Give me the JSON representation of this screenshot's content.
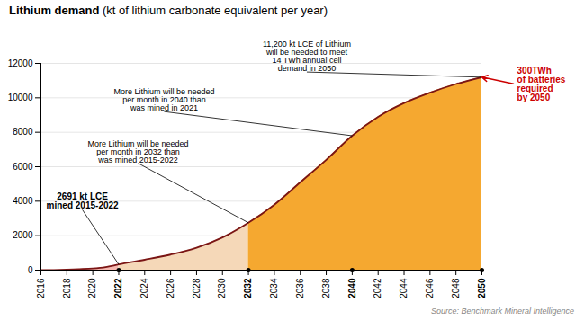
{
  "chart_data": {
    "type": "area",
    "title": "Lithium demand",
    "subtitle": "(kt of lithium carbonate equivalent per year)",
    "caption": "Source: Benchmark Mineral Intelligence",
    "x": [
      2016,
      2017,
      2018,
      2019,
      2020,
      2021,
      2022,
      2024,
      2026,
      2028,
      2030,
      2032,
      2034,
      2036,
      2038,
      2040,
      2042,
      2044,
      2046,
      2048,
      2050
    ],
    "values": [
      0,
      10,
      30,
      60,
      100,
      180,
      330,
      600,
      900,
      1300,
      1900,
      2750,
      3800,
      5100,
      6400,
      7800,
      8900,
      9700,
      10300,
      10800,
      11200
    ],
    "color": "#7a1515",
    "colors": [
      "#f5b8b0",
      "#f5d8b8",
      "#f5a830"
    ],
    "zone_breaks": [
      2022,
      2032
    ],
    "marked_x": [
      2022,
      2032,
      2040,
      2050
    ],
    "xlim": [
      2016,
      2050
    ],
    "xticks": [
      2016,
      2018,
      2020,
      2022,
      2024,
      2026,
      2028,
      2030,
      2032,
      2034,
      2036,
      2038,
      2040,
      2042,
      2044,
      2046,
      2048,
      2050
    ],
    "ylim": [
      0,
      12000
    ],
    "yticks": [
      0,
      2000,
      4000,
      6000,
      8000,
      10000,
      12000
    ],
    "grid": true,
    "annotations": [
      {
        "text": "2691 kt LCE\nmined 2015-2022",
        "x": 2022,
        "y": 330,
        "text_x": 2019.2,
        "text_y": 3500,
        "bold": true
      },
      {
        "text": "More Lithium will be needed\nper month in 2032 than\nwas mined 2015-2022",
        "x": 2032,
        "y": 2750,
        "text_x": 2023.5,
        "text_y": 6200
      },
      {
        "text": "More Lithium will be needed\nper month in 2040 than\nwas mined in 2021",
        "x": 2040,
        "y": 7800,
        "text_x": 2025.5,
        "text_y": 9200
      },
      {
        "text": "11,200 kt LCE of Lithium\nwill be needed to meet\n14 TWh annual cell\ndemand in 2050",
        "x": 2050,
        "y": 11200,
        "text_x": 2036.5,
        "text_y": 11500
      },
      {
        "text": "300TWh\nof batteries\nrequired\nby 2050",
        "x": 2050,
        "y": 11200,
        "text_x": 2052.5,
        "text_y": 10800,
        "bold": true,
        "color": "#cc0000",
        "arrow": true
      }
    ]
  }
}
